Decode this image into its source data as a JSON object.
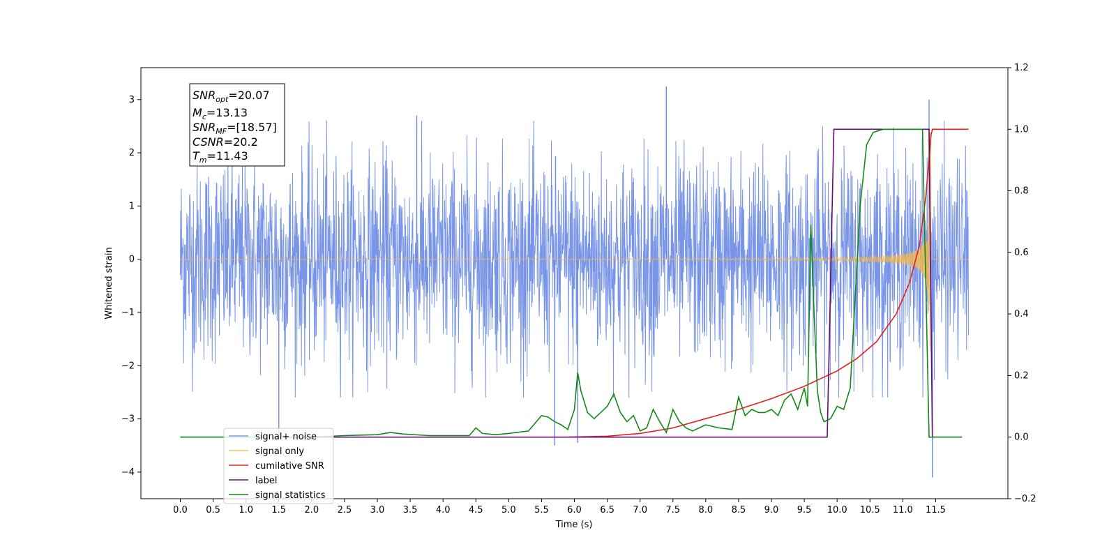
{
  "chart_data": {
    "type": "line",
    "xlabel": "Time (s)",
    "ylabel": "Whitened strain",
    "xlim": [
      -0.6,
      12.6
    ],
    "ylim_left": [
      -4.5,
      3.6
    ],
    "ylim_right": [
      -0.2,
      1.2
    ],
    "x_ticks": [
      "0.0",
      "0.5",
      "1.0",
      "1.5",
      "2.0",
      "2.5",
      "3.0",
      "3.5",
      "4.0",
      "4.5",
      "5.0",
      "5.5",
      "6.0",
      "6.5",
      "7.0",
      "7.5",
      "8.0",
      "8.5",
      "9.0",
      "9.5",
      "10.0",
      "10.5",
      "11.0",
      "11.5"
    ],
    "y_ticks_left": [
      "3",
      "2",
      "1",
      "0",
      "−1",
      "−2",
      "−3",
      "−4"
    ],
    "y_ticks_right": [
      "1.2",
      "1.0",
      "0.8",
      "0.6",
      "0.4",
      "0.2",
      "0.0",
      "−0.2"
    ],
    "grid": false,
    "legend_position": "lower-left",
    "info_box": {
      "snr_opt": {
        "base": "SNR",
        "sub": "opt",
        "value": "=20.07"
      },
      "mc": {
        "base": "M",
        "sub": "c",
        "value": "=13.13"
      },
      "snr_mf": {
        "base": "SNR",
        "sub": "MF",
        "value": "=[18.57]"
      },
      "csnr": {
        "base": "CSNR",
        "sub": "",
        "value": "=20.2"
      },
      "tm": {
        "base": "T",
        "sub": "m",
        "value": "=11.43"
      }
    },
    "series": [
      {
        "name": "signal+ noise",
        "axis": "left",
        "color": "#6a8ae6",
        "description": "noisy strain, roughly ±1.5 with spikes to ±3",
        "x_range": [
          0.0,
          12.0
        ],
        "spikes": [
          {
            "x": 1.5,
            "y": -3.3
          },
          {
            "x": 3.6,
            "y": 2.7
          },
          {
            "x": 5.7,
            "y": -3.5
          },
          {
            "x": 6.05,
            "y": -3.45
          },
          {
            "x": 7.4,
            "y": 3.25
          },
          {
            "x": 11.45,
            "y": -4.1
          },
          {
            "x": 11.4,
            "y": 3.0
          }
        ]
      },
      {
        "name": "signal only",
        "axis": "left",
        "color": "#f5b94a",
        "description": "chirp growing toward merger at ~11.4 s, peak amplitude ~2.7"
      },
      {
        "name": "cumilative SNR",
        "axis": "right",
        "color": "#e3201b",
        "x": [
          5.9,
          6.5,
          7.0,
          7.5,
          8.0,
          8.5,
          9.0,
          9.5,
          10.0,
          10.3,
          10.6,
          10.9,
          11.1,
          11.25,
          11.35,
          11.43,
          11.45,
          12.0
        ],
        "y": [
          0.0,
          0.003,
          0.012,
          0.03,
          0.06,
          0.09,
          0.125,
          0.165,
          0.215,
          0.255,
          0.31,
          0.4,
          0.5,
          0.62,
          0.78,
          0.98,
          1.0,
          1.0
        ]
      },
      {
        "name": "label",
        "axis": "right",
        "color": "#6a0a75",
        "x": [
          0.0,
          9.85,
          9.95,
          11.4,
          11.45,
          11.9
        ],
        "y": [
          0.0,
          0.0,
          1.0,
          1.0,
          0.0,
          0.0
        ]
      },
      {
        "name": "signal statistics",
        "axis": "right",
        "color": "#138a16",
        "x": [
          0.0,
          2.0,
          2.5,
          3.0,
          3.2,
          3.4,
          3.8,
          4.0,
          4.4,
          4.5,
          4.6,
          4.8,
          5.0,
          5.3,
          5.4,
          5.5,
          5.6,
          5.7,
          5.8,
          5.9,
          6.0,
          6.05,
          6.1,
          6.2,
          6.3,
          6.4,
          6.5,
          6.6,
          6.7,
          6.8,
          6.9,
          7.0,
          7.1,
          7.2,
          7.3,
          7.4,
          7.5,
          7.6,
          7.7,
          7.8,
          8.0,
          8.2,
          8.4,
          8.5,
          8.6,
          8.7,
          8.8,
          8.9,
          9.0,
          9.1,
          9.2,
          9.3,
          9.4,
          9.5,
          9.55,
          9.6,
          9.65,
          9.7,
          9.75,
          9.8,
          9.9,
          10.0,
          10.1,
          10.2,
          10.3,
          10.35,
          10.45,
          10.55,
          10.7,
          10.8,
          10.9,
          11.3,
          11.4,
          11.45,
          11.5,
          11.9
        ],
        "y": [
          0.0,
          0.0,
          0.005,
          0.008,
          0.015,
          0.01,
          0.005,
          0.005,
          0.005,
          0.03,
          0.012,
          0.008,
          0.012,
          0.02,
          0.045,
          0.07,
          0.065,
          0.05,
          0.04,
          0.025,
          0.09,
          0.21,
          0.15,
          0.08,
          0.06,
          0.08,
          0.1,
          0.14,
          0.08,
          0.05,
          0.07,
          0.02,
          0.03,
          0.09,
          0.05,
          0.015,
          0.09,
          0.05,
          0.03,
          0.02,
          0.04,
          0.03,
          0.025,
          0.13,
          0.07,
          0.09,
          0.08,
          0.08,
          0.09,
          0.07,
          0.12,
          0.14,
          0.09,
          0.16,
          0.1,
          0.69,
          0.4,
          0.15,
          0.08,
          0.05,
          0.06,
          0.1,
          0.09,
          0.16,
          0.55,
          0.75,
          0.95,
          0.99,
          1.0,
          1.0,
          1.0,
          1.0,
          0.0,
          0.0,
          0.0,
          0.0
        ]
      }
    ]
  },
  "legend": {
    "items": [
      {
        "label": "signal+ noise",
        "color": "#6a8ae6"
      },
      {
        "label": "signal only",
        "color": "#f5b94a"
      },
      {
        "label": "cumilative SNR",
        "color": "#e3201b"
      },
      {
        "label": "label",
        "color": "#6a0a75"
      },
      {
        "label": "signal statistics",
        "color": "#138a16"
      }
    ]
  }
}
